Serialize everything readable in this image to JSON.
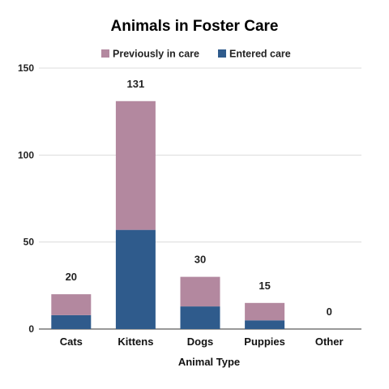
{
  "chart_data": {
    "type": "bar",
    "stacked": true,
    "title": "Animals in Foster Care",
    "xlabel": "Animal Type",
    "ylabel": "",
    "categories": [
      "Cats",
      "Kittens",
      "Dogs",
      "Puppies",
      "Other"
    ],
    "series": [
      {
        "name": "Entered care",
        "values": [
          8,
          57,
          13,
          5,
          0
        ],
        "color": "#2f5b8c"
      },
      {
        "name": "Previously in care",
        "values": [
          12,
          74,
          17,
          10,
          0
        ],
        "color": "#b3889f"
      }
    ],
    "totals": [
      "20",
      "131",
      "30",
      "15",
      "0"
    ],
    "ylim": [
      0,
      150
    ],
    "yticks": [
      "0",
      "50",
      "100",
      "150"
    ],
    "grid": true,
    "legend_position": "top"
  }
}
